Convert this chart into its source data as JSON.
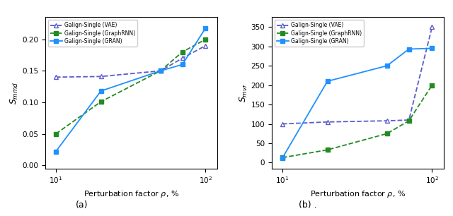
{
  "x_values": [
    10,
    20,
    50,
    70,
    100
  ],
  "left": {
    "ylabel": "$S_{mmd}$",
    "xlabel": "Perturbation factor $\\rho$, %",
    "vae": {
      "label": "Galign-Single (VAE)",
      "color": "#5b5bcc",
      "linestyle": "--",
      "marker": "^",
      "y": [
        0.14,
        0.141,
        0.15,
        0.17,
        0.19
      ]
    },
    "graphrnn": {
      "label": "Galign-Single (GraphRNN)",
      "color": "#228B22",
      "linestyle": "--",
      "marker": "s",
      "y": [
        0.05,
        0.101,
        0.15,
        0.18,
        0.2
      ]
    },
    "gran": {
      "label": "Galign-Single (GRAN)",
      "color": "#1E90FF",
      "linestyle": "-",
      "marker": "s",
      "y": [
        0.022,
        0.118,
        0.15,
        0.16,
        0.218
      ]
    },
    "ylim": [
      -0.005,
      0.235
    ],
    "yticks": [
      0.0,
      0.05,
      0.1,
      0.15,
      0.2
    ]
  },
  "right": {
    "ylabel": "$S_{mvr}$",
    "xlabel": "Perturbation factor $\\rho$, %",
    "vae": {
      "label": "Galign-Single (VAE)",
      "color": "#5b5bcc",
      "linestyle": "--",
      "marker": "^",
      "y": [
        100,
        105,
        108,
        110,
        350
      ]
    },
    "graphrnn": {
      "label": "Galign-Single (GraphRNN)",
      "color": "#228B22",
      "linestyle": "--",
      "marker": "s",
      "y": [
        13,
        33,
        75,
        108,
        200
      ]
    },
    "gran": {
      "label": "Galign-Single (GRAN)",
      "color": "#1E90FF",
      "linestyle": "-",
      "marker": "s",
      "y": [
        12,
        210,
        250,
        293,
        295
      ]
    },
    "ylim": [
      -15,
      375
    ],
    "yticks": [
      0,
      50,
      100,
      150,
      200,
      250,
      300,
      350
    ]
  },
  "label_a": "(a)",
  "label_b": "(b) ."
}
